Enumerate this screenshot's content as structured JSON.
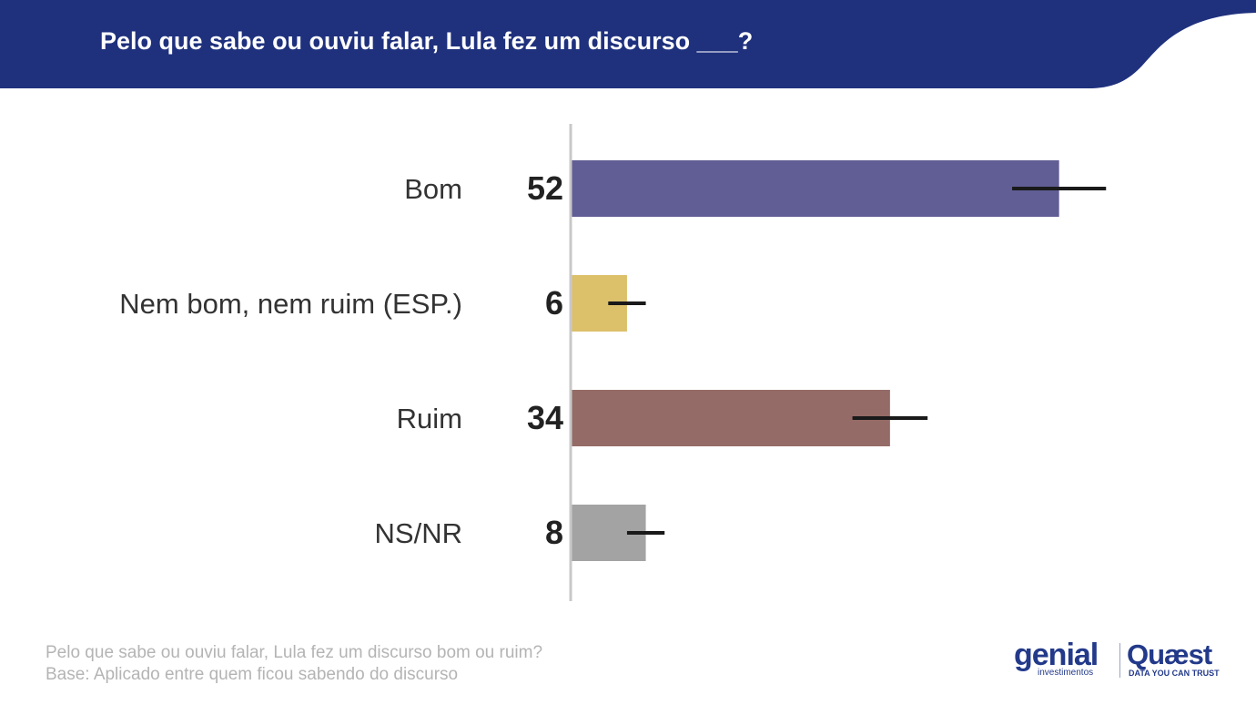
{
  "header": {
    "title": "Pelo que sabe ou ouviu falar, Lula fez um discurso ___?",
    "color": "#1f317d"
  },
  "chart_data": {
    "type": "bar",
    "orientation": "horizontal",
    "categories": [
      "Bom",
      "Nem bom, nem ruim (ESP.)",
      "Ruim",
      "NS/NR"
    ],
    "values": [
      52,
      6,
      34,
      8
    ],
    "colors": [
      "#615d95",
      "#dcc06a",
      "#956b67",
      "#a3a3a3"
    ],
    "error_bars": [
      [
        47,
        57
      ],
      [
        4,
        8
      ],
      [
        30,
        38
      ],
      [
        6,
        10
      ]
    ],
    "xlim": [
      0,
      60
    ],
    "grid": false,
    "legend": "none"
  },
  "footer": {
    "question": "Pelo que sabe ou ouviu falar, Lula fez um discurso bom ou ruim?",
    "base": "Base: Aplicado entre quem ficou sabendo do discurso"
  },
  "logos": {
    "genial": "genial",
    "genial_sub": "investimentos",
    "quaest": "Quæst",
    "quaest_sub": "DATA YOU CAN TRUST"
  }
}
